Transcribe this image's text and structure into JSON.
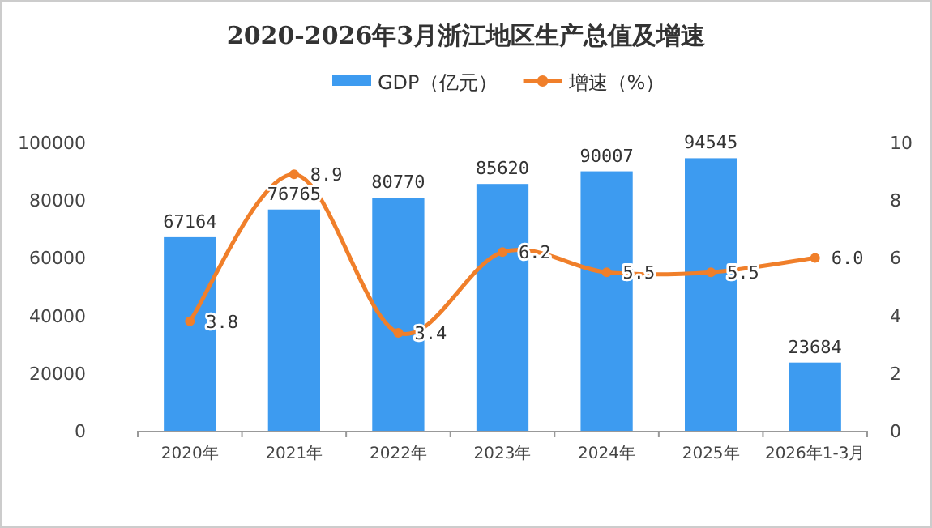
{
  "chart_data": {
    "type": "bar",
    "title": "2020-2026年3月浙江地区生产总值及增速",
    "categories": [
      "2020年",
      "2021年",
      "2022年",
      "2023年",
      "2024年",
      "2025年",
      "2026年1-3月"
    ],
    "series": [
      {
        "name": "GDP（亿元）",
        "color": "#3d9bf0",
        "values": [
          67164,
          76765,
          80770,
          85620,
          90007,
          94545,
          23684
        ]
      },
      {
        "name": "增速（%）",
        "type": "line",
        "axis": "y2",
        "color": "#f07f2a",
        "marker": "circle",
        "values": [
          3.8,
          8.9,
          3.4,
          6.2,
          5.5,
          5.5,
          6.0
        ],
        "value_labels": [
          "3.8",
          "8.9",
          "3.4",
          "6.2",
          "5.5",
          "5.5",
          "6.0"
        ]
      }
    ],
    "ylim": [
      0,
      100000
    ],
    "yticks": [
      0,
      20000,
      40000,
      60000,
      80000,
      100000
    ],
    "y2lim": [
      0,
      10
    ],
    "y2ticks": [
      0,
      2,
      4,
      6,
      8,
      10
    ],
    "data_labels": true,
    "legend": "top"
  }
}
